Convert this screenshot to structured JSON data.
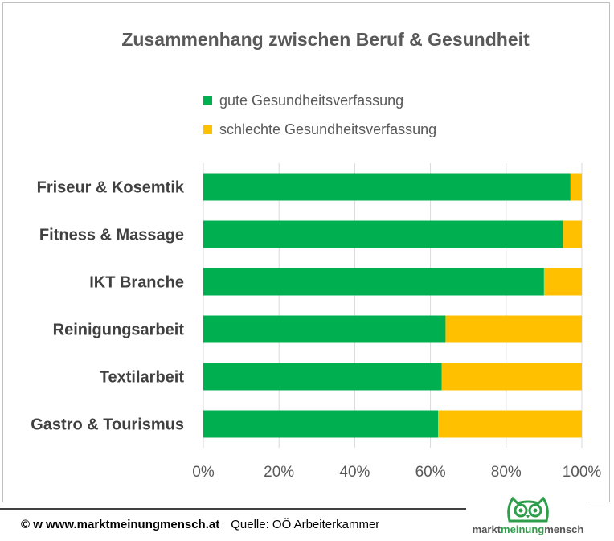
{
  "chart_data": {
    "type": "bar",
    "orientation": "horizontal",
    "stacked": true,
    "title": "Zusammenhang zwischen Beruf & Gesundheit",
    "categories": [
      "Friseur & Kosemtik",
      "Fitness & Massage",
      "IKT Branche",
      "Reinigungsarbeit",
      "Textilarbeit",
      "Gastro & Tourismus"
    ],
    "series": [
      {
        "name": "gute Gesundheitsverfassung",
        "color": "#00b050",
        "values": [
          97,
          95,
          90,
          64,
          63,
          62
        ]
      },
      {
        "name": "schlechte Gesundheitsverfassung",
        "color": "#ffc000",
        "values": [
          3,
          5,
          10,
          36,
          37,
          38
        ]
      }
    ],
    "x_ticks": [
      "0%",
      "20%",
      "40%",
      "60%",
      "80%",
      "100%"
    ],
    "xlim": [
      0,
      100
    ],
    "grid": true,
    "legend_position": "top"
  },
  "footer": {
    "copyright": "© w www.marktmeinungmensch.at",
    "source": "Quelle: OÖ Arbeiterkammer"
  },
  "logo": {
    "text_left": "markt",
    "text_mid": "meinung",
    "text_right": "mensch",
    "icon": "owl-icon"
  }
}
